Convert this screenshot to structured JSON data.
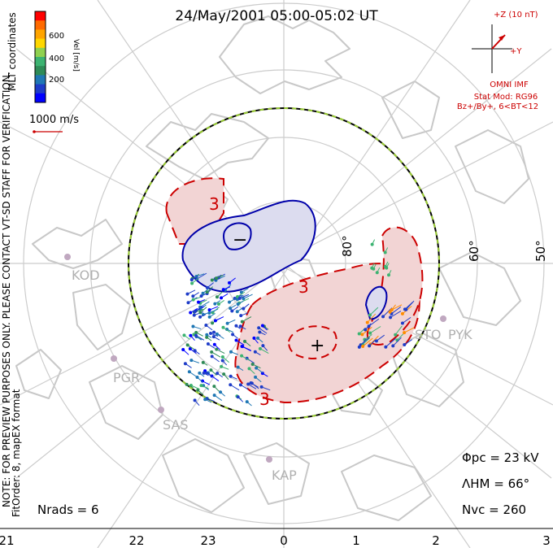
{
  "title": "24/May/2001 05:00-05:02 UT",
  "colorbar": {
    "label": "Vel [m/s]",
    "ticks": [
      "600",
      "400",
      "200"
    ],
    "colors": [
      "#ff0000",
      "#ff6a00",
      "#ffa500",
      "#ffd700",
      "#8fd14f",
      "#3cb371",
      "#2e8b57",
      "#1f77b4",
      "#1e3cc8",
      "#0000ff"
    ]
  },
  "coords_label": "MLT coordinates",
  "scale_vector": {
    "label": "1000 m/s"
  },
  "imf": {
    "label": "+Z (10 nT)",
    "y_label": "+Y",
    "source": "OMNI IMF",
    "model": "Stat Mod: RG96",
    "bin": "Bz+/By+, 6<BT<12"
  },
  "preview_note": "NOTE: FOR PREVIEW PURPOSES ONLY. PLEASE CONTACT VT-SD STAFF FOR VERIFICATION.",
  "fit_order": "FitOrder: 8, mapEX format",
  "latitude_labels": [
    "80°",
    "60°",
    "50°"
  ],
  "stations": [
    "KOD",
    "PGR",
    "SAS",
    "KAP",
    "STO",
    "PYK"
  ],
  "potential_labels": [
    "3",
    "3",
    "3",
    "−",
    "+"
  ],
  "stats": {
    "phi_pc": "Φpc = 23 kV",
    "lambda_hm": "ΛHM = 66°",
    "n_vc": "Nvc = 260",
    "n_rads": "Nrads = 6"
  },
  "mlt_ticks": [
    "21",
    "22",
    "23",
    "0",
    "1",
    "2",
    "3"
  ],
  "colors": {
    "positive_cell": "#f2d4d4",
    "positive_contour": "#cc0000",
    "negative_cell": "#dcdcef",
    "negative_contour": "#0000aa",
    "land": "#c8c8c8",
    "grid": "#cccccc"
  }
}
